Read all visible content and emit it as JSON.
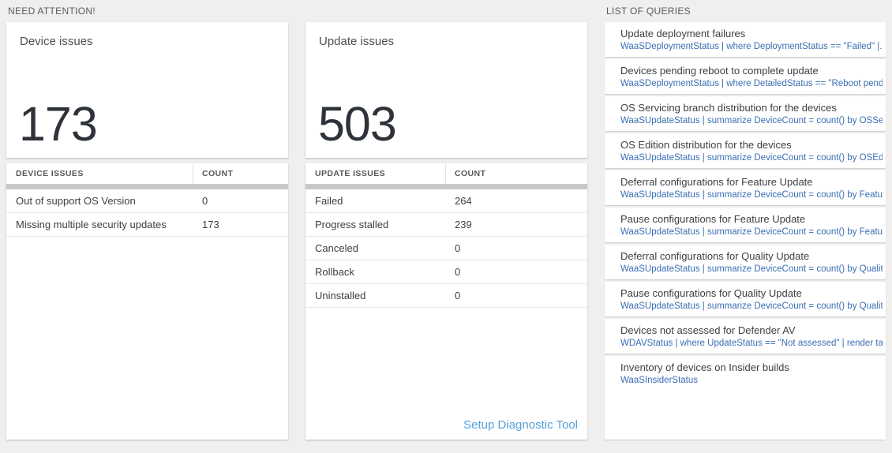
{
  "headers": {
    "need_attention": "NEED ATTENTION!",
    "list_of_queries": "LIST OF QUERIES"
  },
  "colors": {
    "page_background": "#f0efed",
    "query_text_blue": "#3a6fb3",
    "setup_link_blue": "#56a0da",
    "big_number_color": "#2e333a",
    "header_bar_gray": "#c9c9c9"
  },
  "device_card": {
    "title": "Device issues",
    "count": "173",
    "table": {
      "headers": [
        "DEVICE ISSUES",
        "COUNT"
      ],
      "rows": [
        {
          "label": "Out of support OS Version",
          "count": "0"
        },
        {
          "label": "Missing multiple security updates",
          "count": "173"
        }
      ]
    }
  },
  "update_card": {
    "title": "Update issues",
    "count": "503",
    "table": {
      "headers": [
        "UPDATE ISSUES",
        "COUNT"
      ],
      "rows": [
        {
          "label": "Failed",
          "count": "264"
        },
        {
          "label": "Progress stalled",
          "count": "239"
        },
        {
          "label": "Canceled",
          "count": "0"
        },
        {
          "label": "Rollback",
          "count": "0"
        },
        {
          "label": "Uninstalled",
          "count": "0"
        }
      ]
    },
    "footer_link": "Setup Diagnostic Tool"
  },
  "query_list": [
    {
      "title": "Update deployment failures",
      "query": "WaaSDeploymentStatus | where DeploymentStatus == \"Failed\" |..."
    },
    {
      "title": "Devices pending reboot to complete update",
      "query": "WaaSDeploymentStatus | where DetailedStatus == \"Reboot pend..."
    },
    {
      "title": "OS Servicing branch distribution for the devices",
      "query": "WaaSUpdateStatus | summarize DeviceCount = count() by OSSer..."
    },
    {
      "title": "OS Edition distribution for the devices",
      "query": "WaaSUpdateStatus | summarize DeviceCount = count() by OSEdit..."
    },
    {
      "title": "Deferral configurations for Feature Update",
      "query": "WaaSUpdateStatus | summarize DeviceCount = count() by Featur..."
    },
    {
      "title": "Pause configurations for Feature Update",
      "query": "WaaSUpdateStatus | summarize DeviceCount = count() by Featur..."
    },
    {
      "title": "Deferral configurations for Quality Update",
      "query": "WaaSUpdateStatus | summarize DeviceCount = count() by Qualit..."
    },
    {
      "title": "Pause configurations for Quality Update",
      "query": "WaaSUpdateStatus | summarize DeviceCount = count() by Qualit..."
    },
    {
      "title": "Devices not assessed for Defender AV",
      "query": "WDAVStatus | where UpdateStatus == \"Not assessed\" | render ta..."
    },
    {
      "title": "Inventory of devices on Insider builds",
      "query": "WaaSInsiderStatus"
    }
  ]
}
